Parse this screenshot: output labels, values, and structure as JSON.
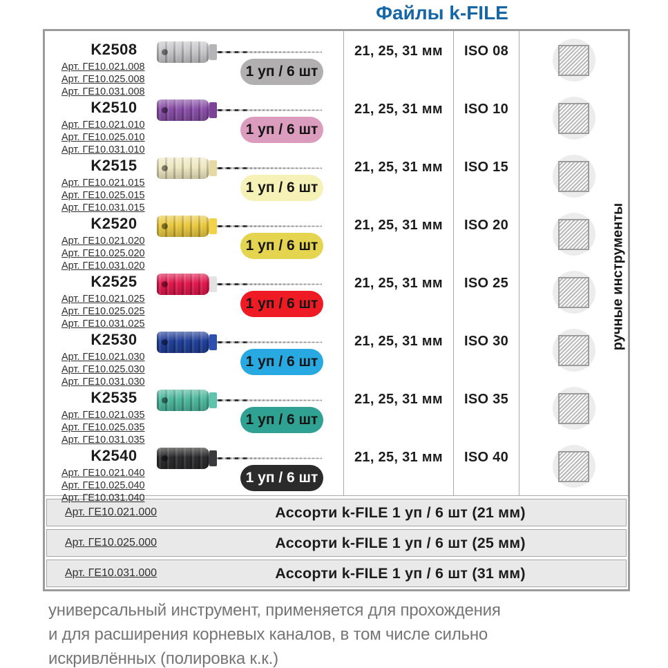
{
  "title": "Файлы k-FILE",
  "title_color": "#1766a6",
  "side_label": "ручные инструменты",
  "products": [
    {
      "code": "K2508",
      "articles": [
        "Арт. ГЕ10.021.008",
        "Арт. ГЕ10.025.008",
        "Арт. ГЕ10.031.008"
      ],
      "badge": "1 уп / 6 шт",
      "length": "21, 25, 31 мм",
      "iso": "ISO 08",
      "handle_color": "#c7c7c9",
      "collar_color": "#b5b5b8",
      "badge_bg": "#b1afaf",
      "badge_text": "#151515"
    },
    {
      "code": "K2510",
      "articles": [
        "Арт. ГЕ10.021.010",
        "Арт. ГЕ10.025.010",
        "Арт. ГЕ10.031.010"
      ],
      "badge": "1 уп / 6 шт",
      "length": "21, 25, 31 мм",
      "iso": "ISO 10",
      "handle_color": "#8a4fa8",
      "collar_color": "#7c4299",
      "badge_bg": "#db9cbe",
      "badge_text": "#151515"
    },
    {
      "code": "K2515",
      "articles": [
        "Арт. ГЕ10.021.015",
        "Арт. ГЕ10.025.015",
        "Арт. ГЕ10.031.015"
      ],
      "badge": "1 уп / 6 шт",
      "length": "21, 25, 31 мм",
      "iso": "ISO 15",
      "handle_color": "#efe7c0",
      "collar_color": "#e6d9a4",
      "badge_bg": "#f6f1b7",
      "badge_text": "#151515"
    },
    {
      "code": "K2520",
      "articles": [
        "Арт. ГЕ10.021.020",
        "Арт. ГЕ10.025.020",
        "Арт. ГЕ10.031.020"
      ],
      "badge": "1 уп / 6 шт",
      "length": "21, 25, 31 мм",
      "iso": "ISO 20",
      "handle_color": "#eac93f",
      "collar_color": "#f0d34a",
      "badge_bg": "#e4d44f",
      "badge_text": "#151515"
    },
    {
      "code": "K2525",
      "articles": [
        "Арт. ГЕ10.021.025",
        "Арт. ГЕ10.025.025",
        "Арт. ГЕ10.031.025"
      ],
      "badge": "1 уп / 6 шт",
      "length": "21, 25, 31 мм",
      "iso": "ISO 25",
      "handle_color": "#e2184e",
      "collar_color": "#e3e3e3",
      "badge_bg": "#ee1b24",
      "badge_text": "#151515"
    },
    {
      "code": "K2530",
      "articles": [
        "Арт. ГЕ10.021.030",
        "Арт. ГЕ10.025.030",
        "Арт. ГЕ10.031.030"
      ],
      "badge": "1 уп / 6 шт",
      "length": "21, 25, 31 мм",
      "iso": "ISO 30",
      "handle_color": "#21409a",
      "collar_color": "#2d4fae",
      "badge_bg": "#29a9e1",
      "badge_text": "#151515"
    },
    {
      "code": "K2535",
      "articles": [
        "Арт. ГЕ10.021.035",
        "Арт. ГЕ10.025.035",
        "Арт. ГЕ10.031.035"
      ],
      "badge": "1 уп / 6 шт",
      "length": "21, 25, 31 мм",
      "iso": "ISO 35",
      "handle_color": "#4db89e",
      "collar_color": "#5fc4ab",
      "badge_bg": "#2fa293",
      "badge_text": "#151515"
    },
    {
      "code": "K2540",
      "articles": [
        "Арт. ГЕ10.021.040",
        "Арт. ГЕ10.025.040",
        "Арт. ГЕ10.031.040"
      ],
      "badge": "1 уп / 6 шт",
      "length": "21, 25, 31 мм",
      "iso": "ISO 40",
      "handle_color": "#2c2c2e",
      "collar_color": "#3a3a3c",
      "badge_bg": "#2b2b2b",
      "badge_text": "#ffffff"
    }
  ],
  "assorted": [
    {
      "article": "Арт. ГЕ10.021.000",
      "name": "Ассорти k-FILE 1 уп / 6 шт (21 мм)"
    },
    {
      "article": "Арт. ГЕ10.025.000",
      "name": "Ассорти k-FILE 1 уп / 6 шт (25 мм)"
    },
    {
      "article": "Арт. ГЕ10.031.000",
      "name": "Ассорти k-FILE 1 уп / 6 шт (31 мм)"
    }
  ],
  "description": [
    "универсальный инструмент, применяется для прохождения",
    "и для расширения корневых каналов, в том числе сильно",
    "искривлённых (полировка к.к.)"
  ]
}
